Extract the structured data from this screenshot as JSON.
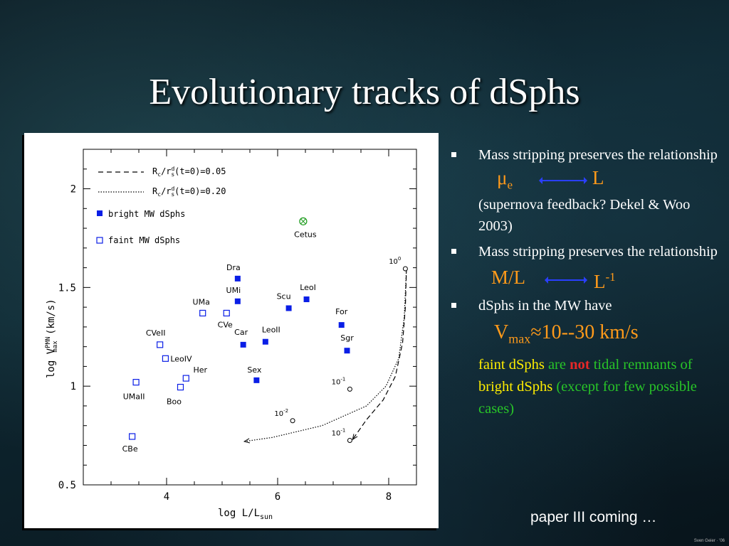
{
  "slide": {
    "title": "Evolutionary tracks of dSphs",
    "paper_note": "paper III coming …",
    "credit": "Sven Geier · '06"
  },
  "bullets": {
    "b1_text": "Mass stripping preserves the relationship",
    "rel1_left": "μ",
    "rel1_left_sub": "e",
    "rel1_right": "L",
    "note1": "(supernova feedback? Dekel & Woo 2003)",
    "b2_text": "Mass stripping preserves the relationship",
    "rel2_left": "M/L",
    "rel2_right": "L",
    "rel2_right_sup": "-1",
    "b3_text": "dSphs in the MW have",
    "vmax_main": "V",
    "vmax_sub": "max",
    "vmax_rest": "≈10--30 km/s",
    "concl_a": "faint dSphs",
    "concl_b": " are ",
    "concl_c": "not",
    "concl_d": " tidal remnants of ",
    "concl_e": "bright dSphs",
    "concl_f": " (except for few possible cases)"
  },
  "colors": {
    "accent_orange": "#ff9a1a",
    "arrow_blue": "#2a3fff",
    "marker_blue": "#0a1ee6",
    "conclusion_green": "#28c428",
    "highlight_yellow": "#ffee00",
    "emphasis_red": "#e62828",
    "cetus_green": "#1a9a1a"
  },
  "chart_data": {
    "type": "scatter",
    "xlabel": "log L/L",
    "xlabel_sub": "sun",
    "ylabel": "log V",
    "ylabel_sup": "PMN",
    "ylabel_sub": "max",
    "ylabel_unit": " (km/s)",
    "xlim": [
      2.5,
      8.5
    ],
    "ylim": [
      0.5,
      2.2
    ],
    "xticks": [
      {
        "v": 4,
        "label": "4"
      },
      {
        "v": 6,
        "label": "6"
      },
      {
        "v": 8,
        "label": "8"
      }
    ],
    "yticks": [
      {
        "v": 0.5,
        "label": "0.5"
      },
      {
        "v": 1.0,
        "label": "1"
      },
      {
        "v": 1.5,
        "label": "1.5"
      },
      {
        "v": 2.0,
        "label": "2"
      }
    ],
    "legend": {
      "placement": "top-left",
      "dashed_label_main": "R",
      "dashed_label_sub1": "c",
      "dashed_label_mid": "/r",
      "dashed_label_sup": "d",
      "dashed_label_sub2": "s",
      "dashed_label_rest": "(t=0)=0.05",
      "dotted_label_main": "R",
      "dotted_label_sub1": "c",
      "dotted_label_mid": "/r",
      "dotted_label_sup": "d",
      "dotted_label_sub2": "s",
      "dotted_label_rest": "(t=0)=0.20",
      "bright_label": "bright MW dSphs",
      "faint_label": "faint MW dSphs"
    },
    "series": [
      {
        "name": "bright MW dSphs",
        "marker": "filled-square",
        "points": [
          {
            "label": "Dra",
            "x": 5.28,
            "y": 1.545
          },
          {
            "label": "UMi",
            "x": 5.28,
            "y": 1.43
          },
          {
            "label": "Car",
            "x": 5.38,
            "y": 1.21
          },
          {
            "label": "LeoII",
            "x": 5.78,
            "y": 1.225
          },
          {
            "label": "Sex",
            "x": 5.62,
            "y": 1.03
          },
          {
            "label": "Scu",
            "x": 6.2,
            "y": 1.395
          },
          {
            "label": "LeoI",
            "x": 6.52,
            "y": 1.44
          },
          {
            "label": "For",
            "x": 7.15,
            "y": 1.31
          },
          {
            "label": "Sgr",
            "x": 7.25,
            "y": 1.18
          }
        ]
      },
      {
        "name": "faint MW dSphs",
        "marker": "open-square",
        "points": [
          {
            "label": "UMa",
            "x": 4.65,
            "y": 1.37
          },
          {
            "label": "CVe",
            "x": 5.08,
            "y": 1.37
          },
          {
            "label": "CVeII",
            "x": 3.88,
            "y": 1.21
          },
          {
            "label": "LeoIV",
            "x": 3.98,
            "y": 1.14
          },
          {
            "label": "Her",
            "x": 4.35,
            "y": 1.04
          },
          {
            "label": "Boo",
            "x": 4.25,
            "y": 0.995
          },
          {
            "label": "UMaII",
            "x": 3.45,
            "y": 1.02
          },
          {
            "label": "CBe",
            "x": 3.38,
            "y": 0.745
          }
        ]
      },
      {
        "name": "Cetus",
        "marker": "circle-cross",
        "points": [
          {
            "label": "Cetus",
            "x": 6.46,
            "y": 1.835
          }
        ]
      }
    ],
    "tracks": [
      {
        "style": "dashed",
        "points": [
          [
            8.32,
            1.6
          ],
          [
            8.3,
            1.4
          ],
          [
            8.25,
            1.22
          ],
          [
            8.12,
            1.05
          ],
          [
            7.9,
            0.93
          ],
          [
            7.6,
            0.83
          ],
          [
            7.35,
            0.73
          ]
        ]
      },
      {
        "style": "dotted",
        "points": [
          [
            8.32,
            1.6
          ],
          [
            8.28,
            1.35
          ],
          [
            8.18,
            1.14
          ],
          [
            7.95,
            1.0
          ],
          [
            7.6,
            0.9
          ],
          [
            6.8,
            0.8
          ],
          [
            5.9,
            0.74
          ],
          [
            5.4,
            0.72
          ]
        ]
      }
    ],
    "track_markers": [
      {
        "x": 8.3,
        "y": 1.595,
        "label": "10",
        "sup": "0"
      },
      {
        "x": 7.3,
        "y": 0.985,
        "label": "10",
        "sup": "-1"
      },
      {
        "x": 6.27,
        "y": 0.825,
        "label": "10",
        "sup": "-2"
      },
      {
        "x": 7.3,
        "y": 0.725,
        "label": "10",
        "sup": "-1"
      }
    ]
  }
}
